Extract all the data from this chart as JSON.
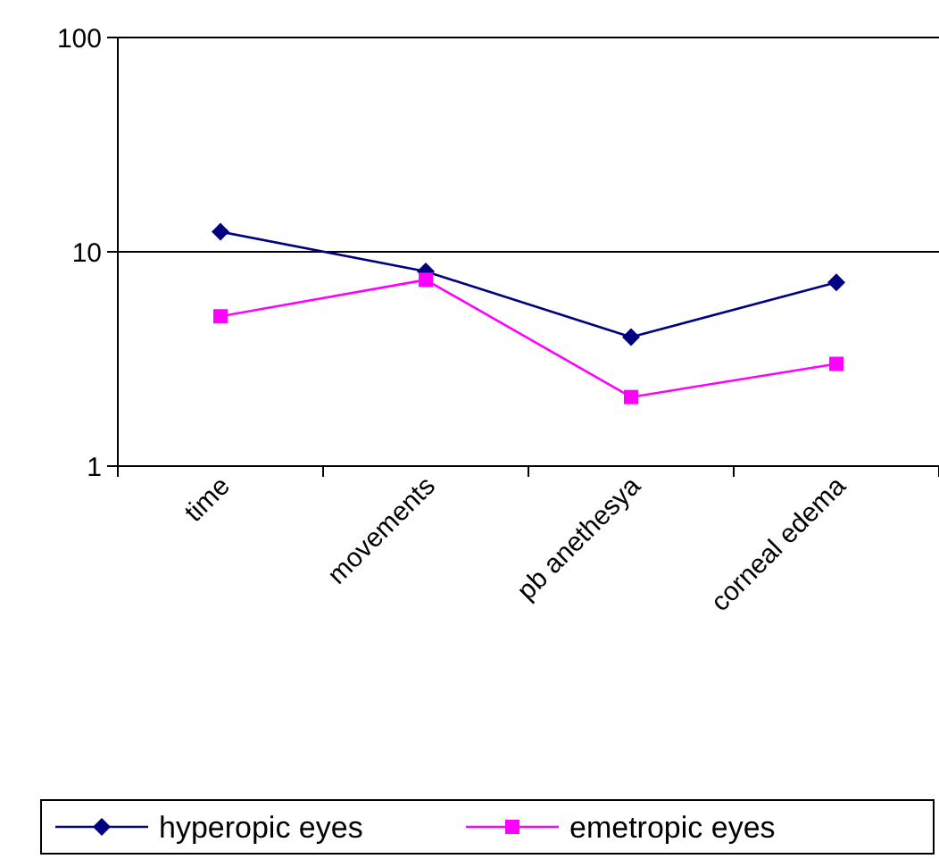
{
  "chart_data": {
    "type": "line",
    "categories": [
      "time",
      "movements",
      "pb anethesya",
      "corneal edema"
    ],
    "series": [
      {
        "name": "hyperopic eyes",
        "color": "#000080",
        "marker": "diamond",
        "values": [
          12.4,
          8.1,
          4.0,
          7.2
        ]
      },
      {
        "name": "emetropic eyes",
        "color": "#ff00ff",
        "marker": "square",
        "values": [
          5.0,
          7.4,
          2.1,
          3.0
        ]
      }
    ],
    "log": "y",
    "ylim": [
      1,
      100
    ],
    "yticks": [
      1,
      10,
      100
    ],
    "grid": "y",
    "legend": "bottom"
  }
}
